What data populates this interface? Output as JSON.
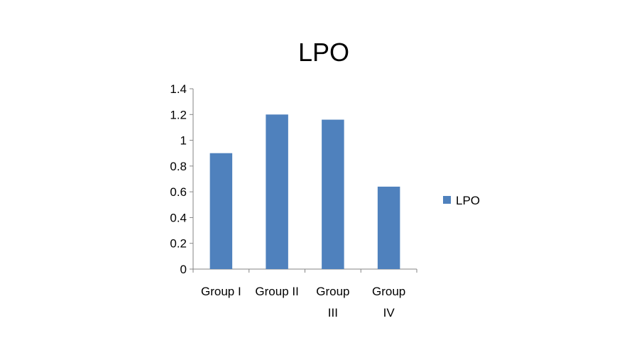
{
  "chart_data": {
    "type": "bar",
    "title": "LPO",
    "categories": [
      "Group I",
      "Group II",
      "Group III",
      "Group IV"
    ],
    "category_label_lines": [
      [
        "Group I"
      ],
      [
        "Group II"
      ],
      [
        "Group",
        "III"
      ],
      [
        "Group",
        "IV"
      ]
    ],
    "series": [
      {
        "name": "LPO",
        "values": [
          0.9,
          1.2,
          1.16,
          0.64
        ],
        "color": "#4f81bd"
      }
    ],
    "ylim": [
      0,
      1.4
    ],
    "yticks": [
      "0",
      "0.2",
      "0.4",
      "0.6",
      "0.8",
      "1",
      "1.2",
      "1.4"
    ],
    "xlabel": "",
    "ylabel": "",
    "grid": false,
    "legend": {
      "placement": "right",
      "entries": [
        "LPO"
      ]
    }
  },
  "colors": {
    "bar": "#4f81bd",
    "axis": "#868686",
    "text": "#000000"
  }
}
